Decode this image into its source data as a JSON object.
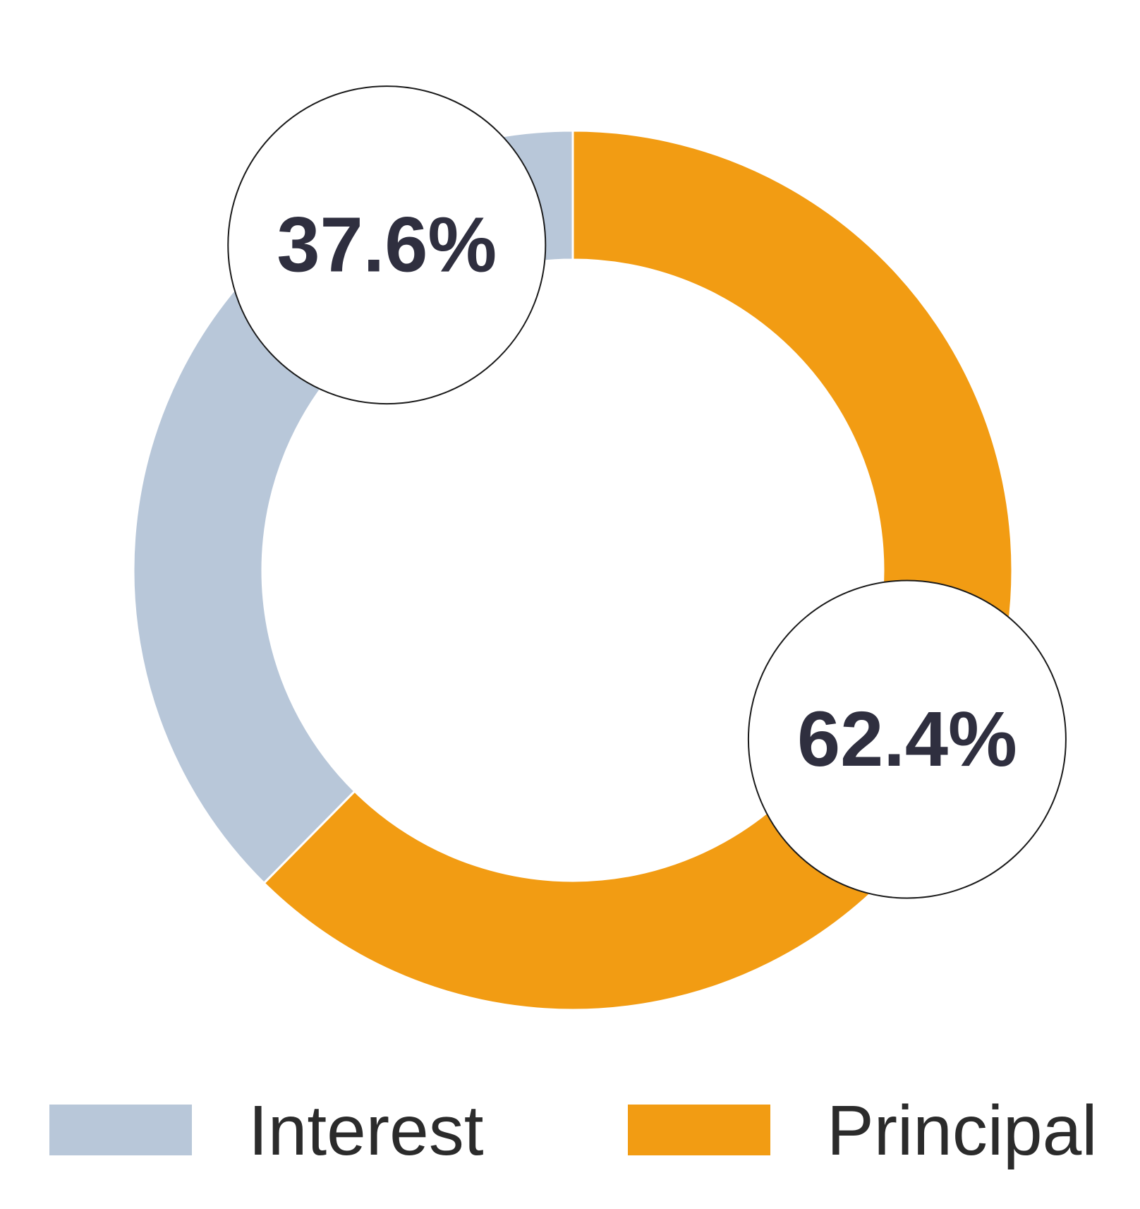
{
  "chart_data": {
    "type": "pie",
    "variant": "donut",
    "slices": [
      {
        "name": "Interest",
        "value": 37.6,
        "label": "37.6%",
        "color": "#b8c7d9"
      },
      {
        "name": "Principal",
        "value": 62.4,
        "label": "62.4%",
        "color": "#f29c13"
      }
    ],
    "legend": {
      "position": "bottom",
      "entries": [
        "Interest",
        "Principal"
      ]
    }
  }
}
